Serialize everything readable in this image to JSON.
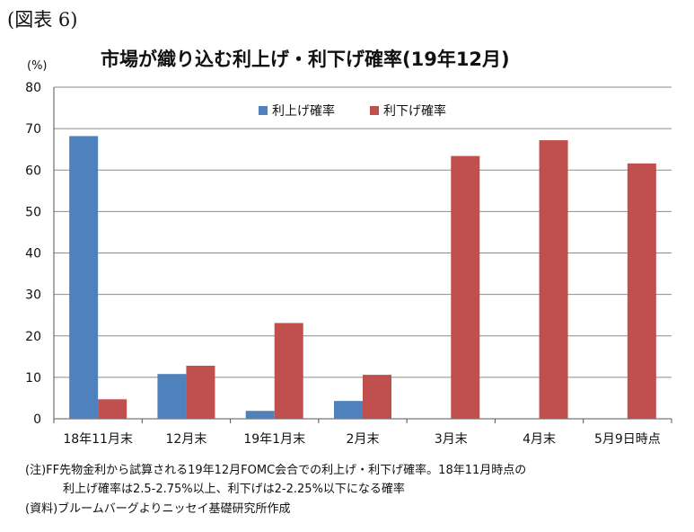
{
  "figure_label": "(図表 6)",
  "notes": {
    "line1": "(注)FF先物金利から試算される19年12月FOMC会合での利上げ・利下げ確率。18年11月時点の",
    "line2": "利上げ確率は2.5-2.75%以上、利下げは2-2.25%以下になる確率",
    "source": "(資料)ブルームバーグよりニッセイ基礎研究所作成"
  },
  "chart_data": {
    "type": "bar",
    "title": "市場が織り込む利上げ・利下げ確率(19年12月)",
    "ylabel": "(%)",
    "xlabel": "",
    "ylim": [
      0,
      80
    ],
    "yticks": [
      0,
      10,
      20,
      30,
      40,
      50,
      60,
      70,
      80
    ],
    "grid": true,
    "legend_position": "top-center",
    "categories": [
      "18年11月末",
      "12月末",
      "19年1月末",
      "2月末",
      "3月末",
      "4月末",
      "5月9日時点"
    ],
    "series": [
      {
        "name": "利上げ確率",
        "color": "#4F81BD",
        "values": [
          68.2,
          10.8,
          1.9,
          4.3,
          0,
          0,
          0
        ]
      },
      {
        "name": "利下げ確率",
        "color": "#C0504D",
        "values": [
          4.7,
          12.8,
          23.1,
          10.6,
          63.4,
          67.2,
          61.6
        ]
      }
    ]
  }
}
